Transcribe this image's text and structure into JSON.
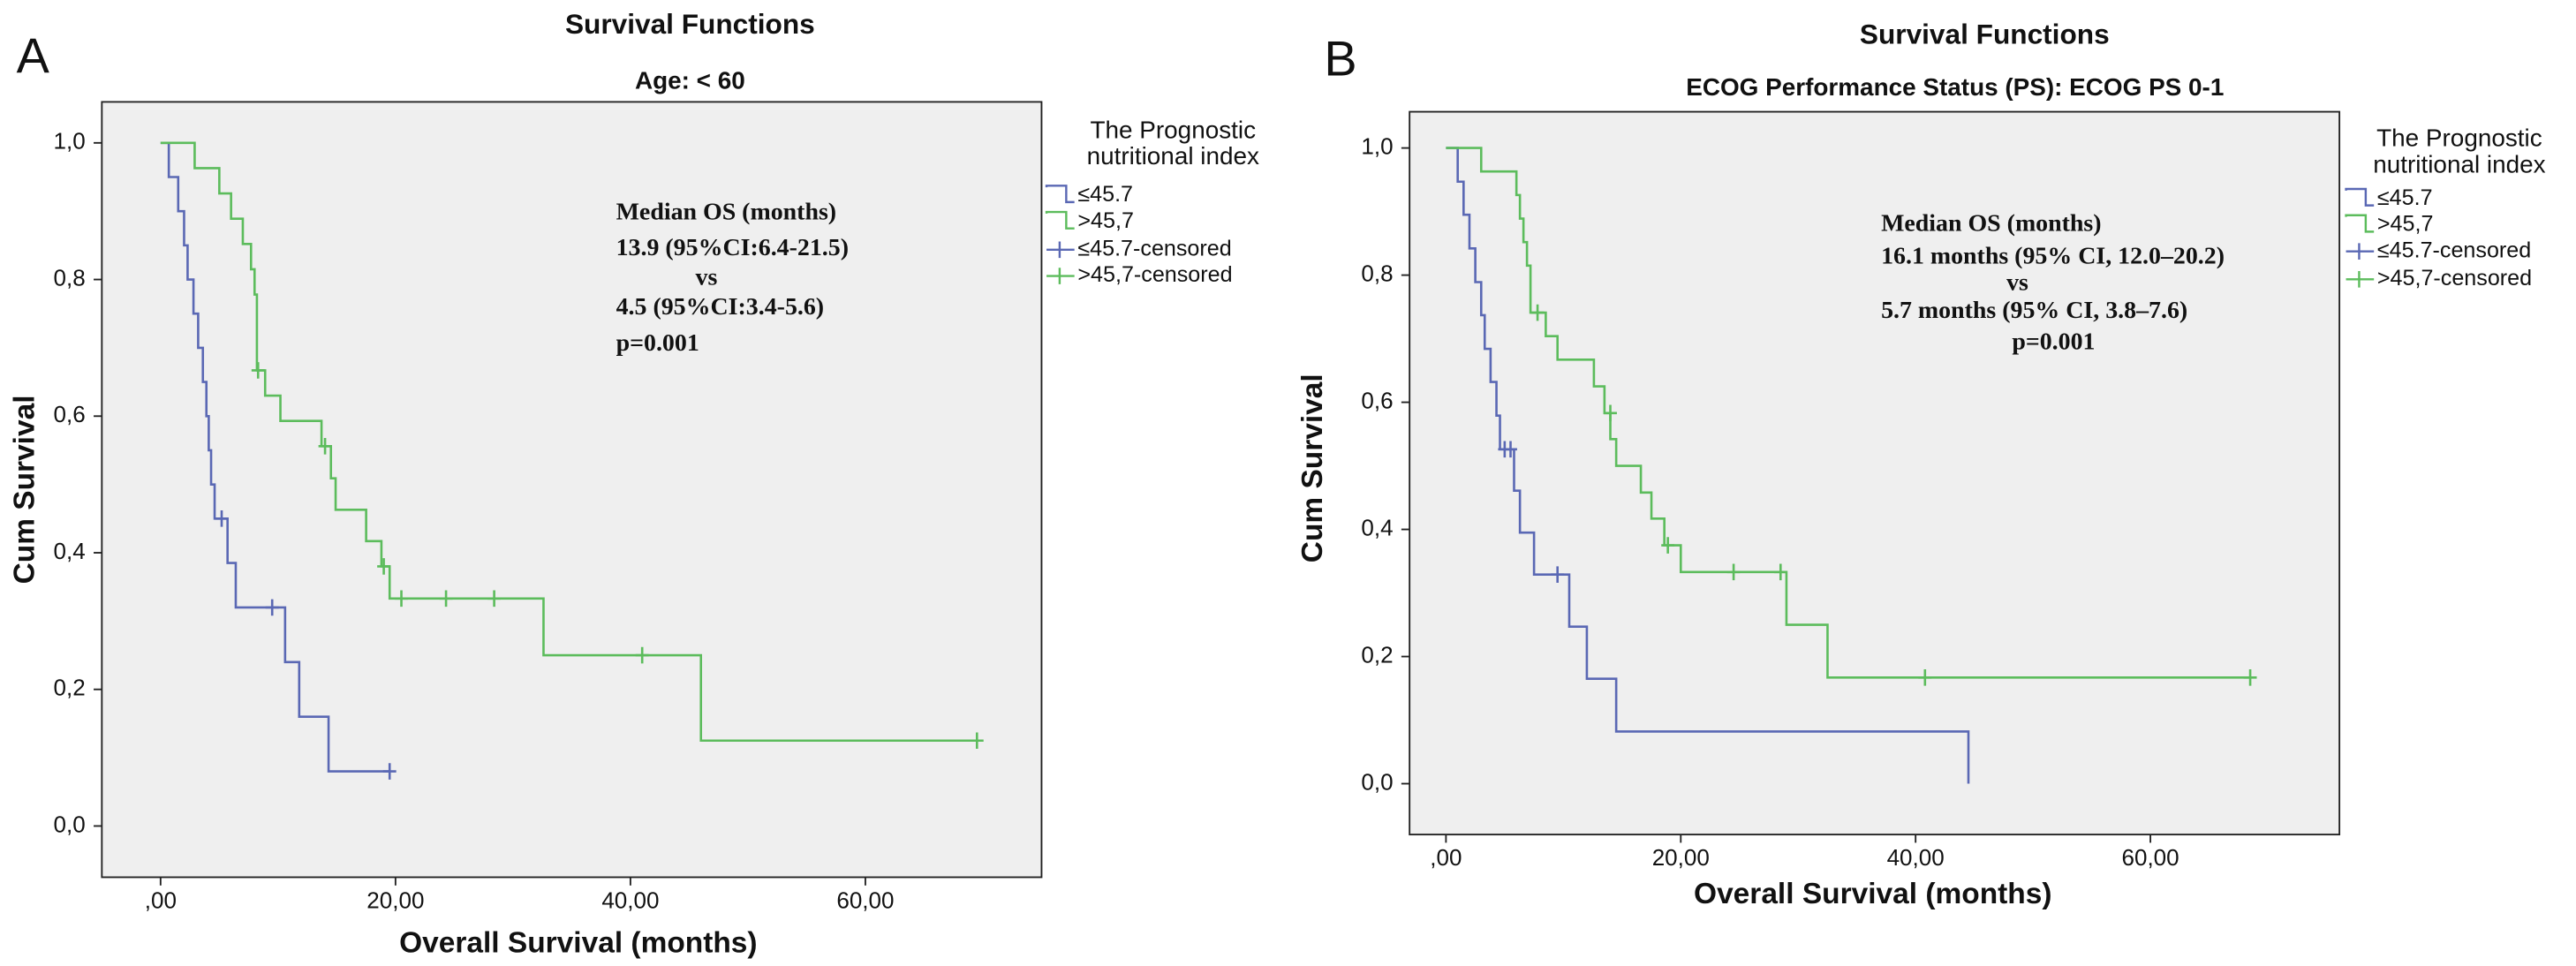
{
  "chart_data": [
    {
      "type": "step",
      "panel_label": "A",
      "title": "Survival Functions",
      "subtitle": "Age: < 60",
      "x_label": "Overall Survival (months)",
      "y_label": "Cum Survival",
      "xlim": [
        -5,
        75
      ],
      "ylim": [
        -0.075,
        1.06
      ],
      "xticks": [
        {
          "value": 0,
          "label": ",00"
        },
        {
          "value": 20,
          "label": "20,00"
        },
        {
          "value": 40,
          "label": "40,00"
        },
        {
          "value": 60,
          "label": "60,00"
        }
      ],
      "yticks": [
        {
          "value": 0,
          "label": "0,0"
        },
        {
          "value": 0.2,
          "label": "0,2"
        },
        {
          "value": 0.4,
          "label": "0,4"
        },
        {
          "value": 0.6,
          "label": "0,6"
        },
        {
          "value": 0.8,
          "label": "0,8"
        },
        {
          "value": 1,
          "label": "1,0"
        }
      ],
      "legend_title": [
        "The Prognostic",
        "nutritional index"
      ],
      "annotation": [
        "Median OS (months)",
        "13.9 (95%CI:6.4-21.5)",
        "vs",
        "4.5 (95%CI:3.4-5.6)",
        "p=0.001"
      ],
      "series": [
        {
          "name": "≤45.7",
          "color": "#5a68b4",
          "style": "line",
          "x": [
            0,
            0.7,
            1.5,
            2.0,
            2.3,
            2.8,
            3.2,
            3.6,
            3.9,
            4.1,
            4.3,
            4.6,
            5.7,
            6.4,
            10.6,
            11.8,
            14.3,
            19.5
          ],
          "values": [
            1,
            0.95,
            0.9,
            0.85,
            0.8,
            0.75,
            0.7,
            0.65,
            0.6,
            0.55,
            0.5,
            0.45,
            0.385,
            0.32,
            0.24,
            0.16,
            0.08,
            0.08
          ]
        },
        {
          "name": ">45,7",
          "color": "#5cbc5c",
          "style": "line",
          "x": [
            0,
            2.9,
            5.0,
            6.0,
            7.0,
            7.7,
            8.0,
            8.2,
            8.9,
            10.2,
            13.7,
            14.5,
            14.9,
            17.5,
            18.8,
            19.5,
            32.6,
            46,
            69.5
          ],
          "values": [
            1,
            0.963,
            0.926,
            0.889,
            0.852,
            0.815,
            0.778,
            0.667,
            0.63,
            0.593,
            0.556,
            0.509,
            0.463,
            0.417,
            0.38,
            0.333,
            0.25,
            0.125,
            0.125
          ]
        },
        {
          "name": "≤45.7-censored",
          "color": "#5a68b4",
          "style": "marker",
          "x": [
            5.2,
            9.5,
            19.5
          ],
          "values": [
            0.45,
            0.32,
            0.08
          ]
        },
        {
          "name": ">45,7-censored",
          "color": "#5cbc5c",
          "style": "marker",
          "x": [
            8.3,
            14,
            19,
            20.5,
            24.3,
            28.4,
            41,
            69.5
          ],
          "values": [
            0.667,
            0.556,
            0.38,
            0.333,
            0.333,
            0.333,
            0.25,
            0.125
          ]
        }
      ]
    },
    {
      "type": "step",
      "panel_label": "B",
      "title": "Survival Functions",
      "subtitle": "ECOG Performance Status  (PS): ECOG PS 0-1",
      "x_label": "Overall Survival (months)",
      "y_label": "Cum Survival",
      "xlim": [
        -3.1,
        76.1
      ],
      "ylim": [
        -0.08,
        1.057
      ],
      "xticks": [
        {
          "value": 0,
          "label": ",00"
        },
        {
          "value": 20,
          "label": "20,00"
        },
        {
          "value": 40,
          "label": "40,00"
        },
        {
          "value": 60,
          "label": "60,00"
        }
      ],
      "yticks": [
        {
          "value": 0,
          "label": "0,0"
        },
        {
          "value": 0.2,
          "label": "0,2"
        },
        {
          "value": 0.4,
          "label": "0,4"
        },
        {
          "value": 0.6,
          "label": "0,6"
        },
        {
          "value": 0.8,
          "label": "0,8"
        },
        {
          "value": 1,
          "label": "1,0"
        }
      ],
      "legend_title": [
        "The Prognostic",
        "nutritional index"
      ],
      "annotation": [
        "Median OS (months)",
        "16.1 months (95% CI, 12.0–20.2)",
        "vs",
        "5.7 months (95% CI, 3.8–7.6)",
        "p=0.001"
      ],
      "series": [
        {
          "name": "≤45.7",
          "color": "#5a68b4",
          "style": "line",
          "x": [
            0,
            1,
            1.5,
            2,
            2.5,
            3,
            3.3,
            3.8,
            4.3,
            4.6,
            5.8,
            6.3,
            7.5,
            10.5,
            12,
            14.5,
            44.5
          ],
          "values": [
            1,
            0.947,
            0.895,
            0.842,
            0.789,
            0.737,
            0.684,
            0.632,
            0.579,
            0.526,
            0.461,
            0.395,
            0.329,
            0.247,
            0.165,
            0.082,
            0
          ]
        },
        {
          "name": ">45,7",
          "color": "#5cbc5c",
          "style": "line",
          "x": [
            0,
            3,
            6,
            6.3,
            6.6,
            6.9,
            7.2,
            8.5,
            9.5,
            12.6,
            13.5,
            14,
            14.5,
            16.6,
            17.5,
            18.6,
            20,
            29,
            32.5,
            68.5
          ],
          "values": [
            1,
            0.963,
            0.926,
            0.889,
            0.852,
            0.815,
            0.741,
            0.704,
            0.667,
            0.625,
            0.583,
            0.542,
            0.5,
            0.458,
            0.417,
            0.375,
            0.333,
            0.25,
            0.167,
            0.167
          ]
        },
        {
          "name": "≤45.7-censored",
          "color": "#5a68b4",
          "style": "marker",
          "x": [
            5,
            5.5,
            9.5
          ],
          "values": [
            0.526,
            0.526,
            0.329
          ]
        },
        {
          "name": ">45,7-censored",
          "color": "#5cbc5c",
          "style": "marker",
          "x": [
            7.8,
            14,
            18.9,
            24.5,
            28.5,
            40.8,
            68.5
          ],
          "values": [
            0.741,
            0.583,
            0.375,
            0.333,
            0.333,
            0.167,
            0.167
          ]
        }
      ]
    }
  ]
}
